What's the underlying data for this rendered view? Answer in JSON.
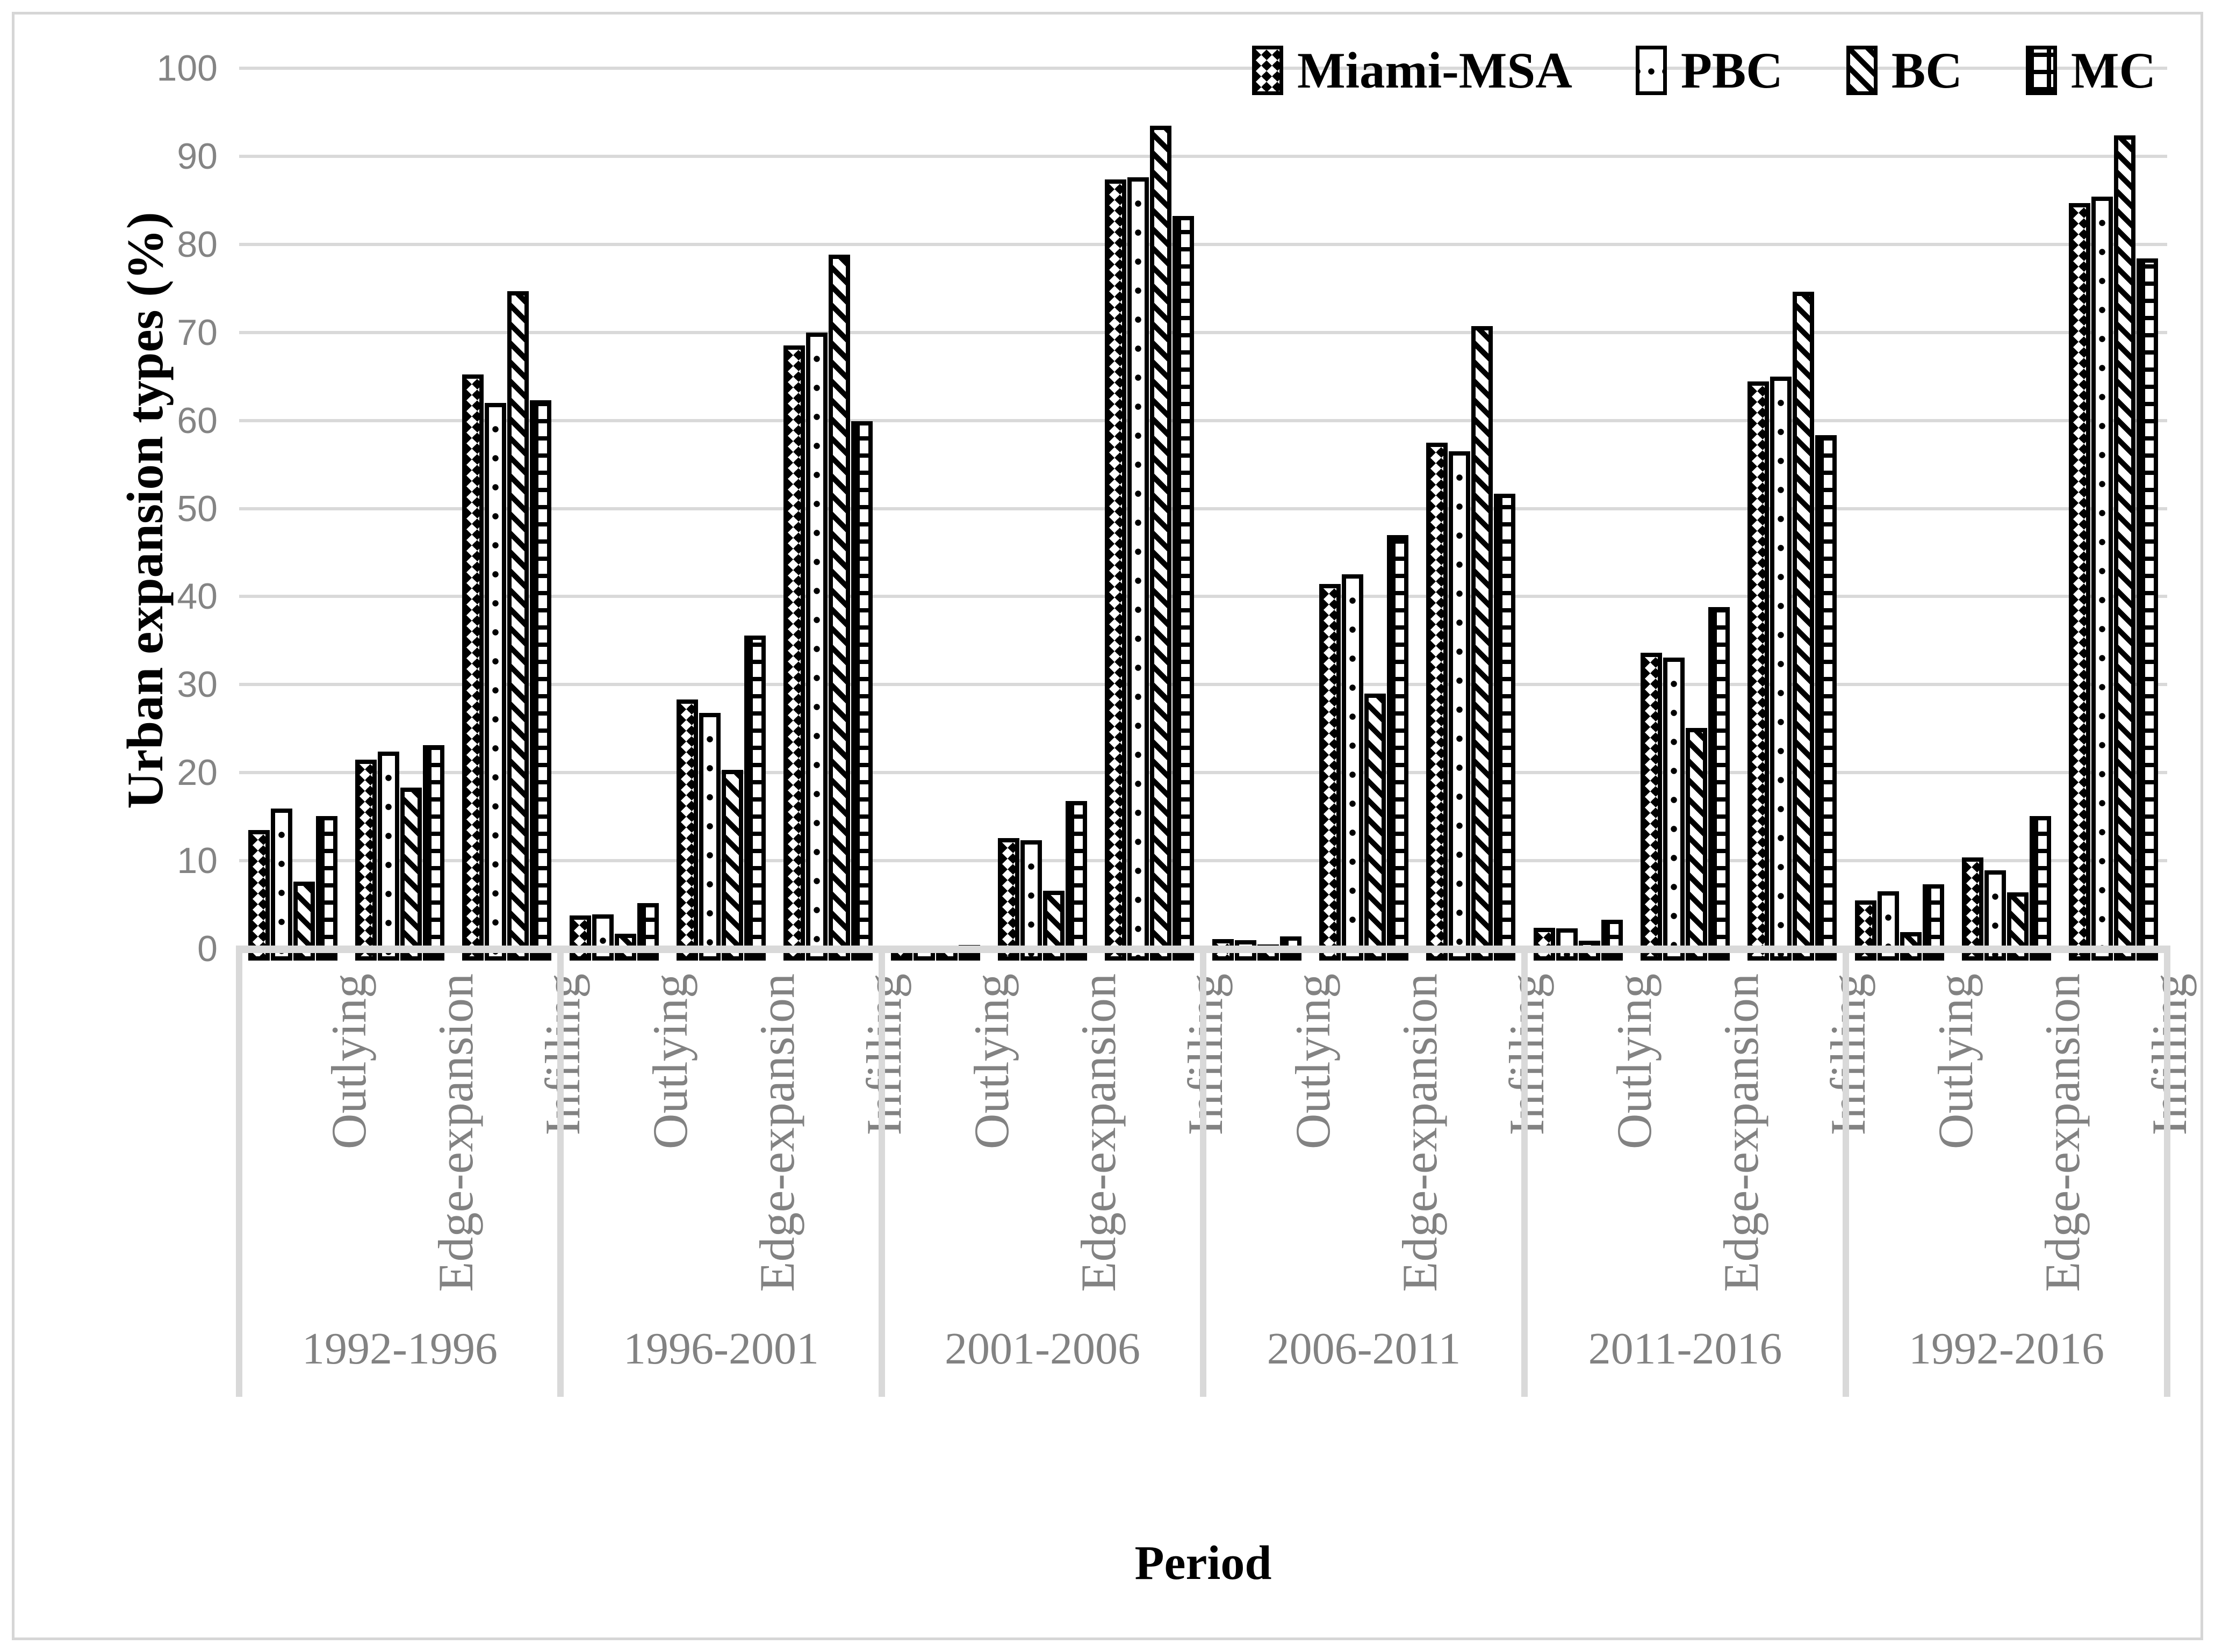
{
  "figure": {
    "y_axis_title": "Urban expansion types (%)",
    "x_axis_title": "Period",
    "colors": {
      "gridline": "#d9d9d9",
      "axis_text": "#828282",
      "bar_outline": "#000000",
      "background": "#ffffff"
    }
  },
  "chart_data": {
    "type": "bar",
    "title": "",
    "ylabel": "Urban expansion types (%)",
    "xlabel": "Period",
    "ylim": [
      0,
      100
    ],
    "y_ticks": [
      0,
      10,
      20,
      30,
      40,
      50,
      60,
      70,
      80,
      90,
      100
    ],
    "grid": "horizontal",
    "legend_position": "top-right",
    "series": [
      {
        "name": "Miami-MSA",
        "pattern": "checker"
      },
      {
        "name": "PBC",
        "pattern": "dots"
      },
      {
        "name": "BC",
        "pattern": "stripes"
      },
      {
        "name": "MC",
        "pattern": "grid"
      }
    ],
    "groups": [
      {
        "period": "1992-1996",
        "categories": [
          {
            "label": "Outlying",
            "values": [
              13.5,
              15.9,
              7.6,
              15.1
            ]
          },
          {
            "label": "Edge-expansion",
            "values": [
              21.5,
              22.4,
              18.3,
              23.1
            ]
          },
          {
            "label": "Infilling",
            "values": [
              65.2,
              62.0,
              74.7,
              62.3
            ]
          }
        ]
      },
      {
        "period": "1996-2001",
        "categories": [
          {
            "label": "Outlying",
            "values": [
              3.8,
              3.9,
              1.7,
              5.2
            ]
          },
          {
            "label": "Edge-expansion",
            "values": [
              28.3,
              26.8,
              20.3,
              35.6
            ]
          },
          {
            "label": "Infilling",
            "values": [
              68.5,
              70.0,
              78.8,
              59.9
            ]
          }
        ]
      },
      {
        "period": "2001-2006",
        "categories": [
          {
            "label": "Outlying",
            "values": [
              0.3,
              0.3,
              0.1,
              0.4
            ]
          },
          {
            "label": "Edge-expansion",
            "values": [
              12.6,
              12.3,
              6.6,
              16.8
            ]
          },
          {
            "label": "Infilling",
            "values": [
              87.4,
              87.6,
              93.5,
              83.2
            ]
          }
        ]
      },
      {
        "period": "2006-2011",
        "categories": [
          {
            "label": "Outlying",
            "values": [
              1.1,
              1.0,
              0.5,
              1.4
            ]
          },
          {
            "label": "Edge-expansion",
            "values": [
              41.4,
              42.5,
              29.0,
              47.0
            ]
          },
          {
            "label": "Infilling",
            "values": [
              57.5,
              56.5,
              70.7,
              51.7
            ]
          }
        ]
      },
      {
        "period": "2011-2016",
        "categories": [
          {
            "label": "Outlying",
            "values": [
              2.4,
              2.3,
              0.9,
              3.3
            ]
          },
          {
            "label": "Edge-expansion",
            "values": [
              33.6,
              33.1,
              25.1,
              38.8
            ]
          },
          {
            "label": "Infilling",
            "values": [
              64.4,
              65.0,
              74.6,
              58.3
            ]
          }
        ]
      },
      {
        "period": "1992-2016",
        "categories": [
          {
            "label": "Outlying",
            "values": [
              5.5,
              6.5,
              1.9,
              7.3
            ]
          },
          {
            "label": "Edge-expansion",
            "values": [
              10.4,
              8.9,
              6.4,
              15.1
            ]
          },
          {
            "label": "Infilling",
            "values": [
              84.7,
              85.4,
              92.4,
              78.4
            ]
          }
        ]
      }
    ]
  }
}
